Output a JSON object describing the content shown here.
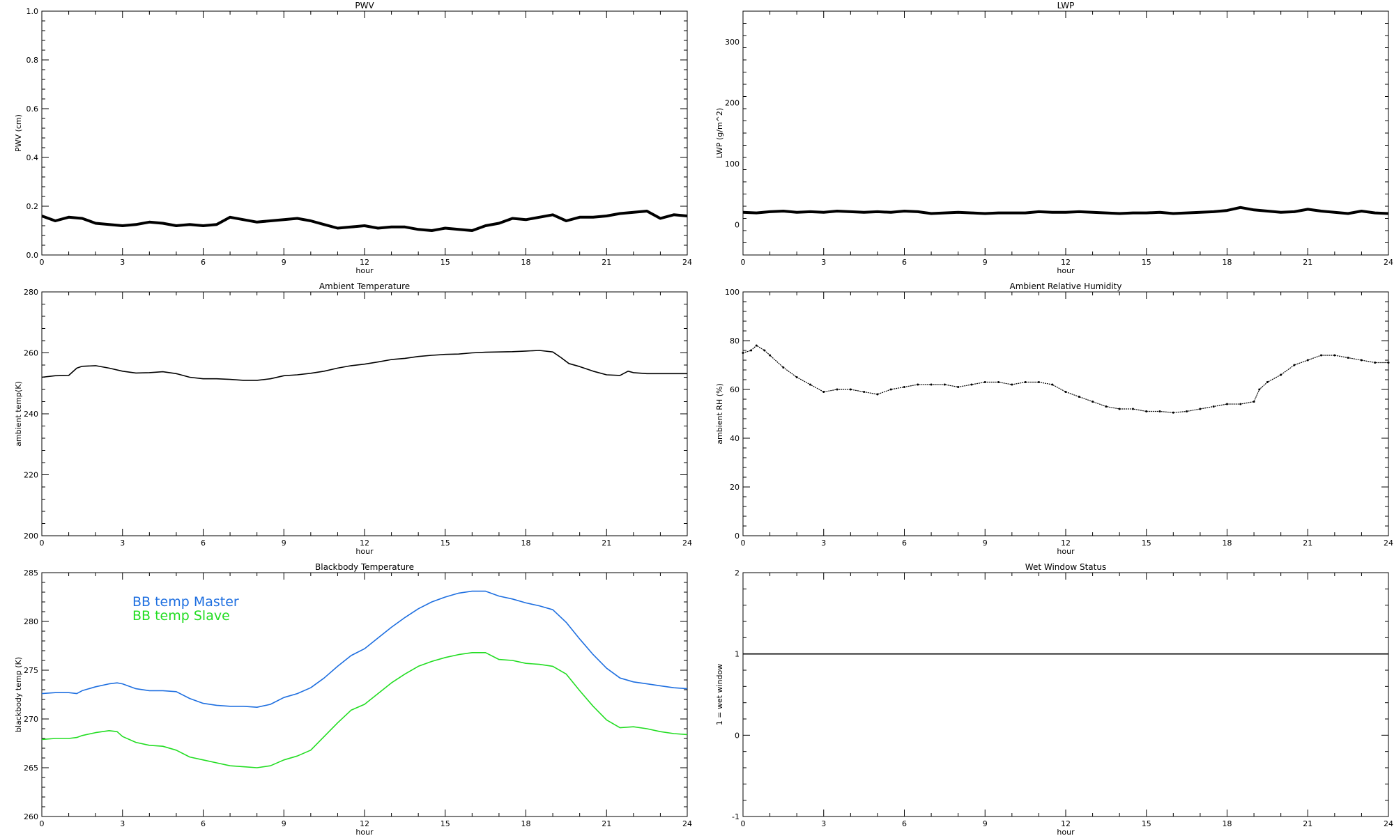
{
  "chart_data": [
    {
      "type": "line",
      "title": "PWV",
      "xlabel": "hour",
      "ylabel": "PWV (cm)",
      "xlim": [
        0,
        24
      ],
      "ylim": [
        0,
        1
      ],
      "xticks": [
        0,
        3,
        6,
        9,
        12,
        15,
        18,
        21,
        24
      ],
      "yticks": [
        "0.0",
        "0.2",
        "0.4",
        "0.6",
        "0.8",
        "1.0"
      ],
      "series": [
        {
          "color": "#000000",
          "x": [
            0,
            0.5,
            1,
            1.5,
            2,
            2.5,
            3,
            3.5,
            4,
            4.5,
            5,
            5.5,
            6,
            6.5,
            7,
            7.5,
            8,
            8.5,
            9,
            9.5,
            10,
            10.5,
            11,
            11.5,
            12,
            12.5,
            13,
            13.5,
            14,
            14.5,
            15,
            15.5,
            16,
            16.5,
            17,
            17.5,
            18,
            18.5,
            19,
            19.5,
            20,
            20.5,
            21,
            21.5,
            22,
            22.5,
            23,
            23.5,
            24
          ],
          "y": [
            0.16,
            0.14,
            0.155,
            0.15,
            0.13,
            0.125,
            0.12,
            0.125,
            0.135,
            0.13,
            0.12,
            0.125,
            0.12,
            0.125,
            0.155,
            0.145,
            0.135,
            0.14,
            0.145,
            0.15,
            0.14,
            0.125,
            0.11,
            0.115,
            0.12,
            0.11,
            0.115,
            0.115,
            0.105,
            0.1,
            0.11,
            0.105,
            0.1,
            0.12,
            0.13,
            0.15,
            0.145,
            0.155,
            0.165,
            0.14,
            0.155,
            0.155,
            0.16,
            0.17,
            0.175,
            0.18,
            0.15,
            0.165,
            0.16
          ]
        }
      ]
    },
    {
      "type": "line",
      "title": "LWP",
      "xlabel": "hour",
      "ylabel": "LWP (g/m^2)",
      "xlim": [
        0,
        24
      ],
      "ylim": [
        -50,
        350
      ],
      "xticks": [
        0,
        3,
        6,
        9,
        12,
        15,
        18,
        21,
        24
      ],
      "yticks": [
        "0",
        "100",
        "200",
        "300"
      ],
      "series": [
        {
          "color": "#000000",
          "x": [
            0,
            0.5,
            1,
            1.5,
            2,
            2.5,
            3,
            3.5,
            4,
            4.5,
            5,
            5.5,
            6,
            6.5,
            7,
            7.5,
            8,
            8.5,
            9,
            9.5,
            10,
            10.5,
            11,
            11.5,
            12,
            12.5,
            13,
            13.5,
            14,
            14.5,
            15,
            15.5,
            16,
            16.5,
            17,
            17.5,
            18,
            18.5,
            19,
            19.5,
            20,
            20.5,
            21,
            21.5,
            22,
            22.5,
            23,
            23.5,
            24
          ],
          "y": [
            20,
            19,
            21,
            22,
            20,
            21,
            20,
            22,
            21,
            20,
            21,
            20,
            22,
            21,
            18,
            19,
            20,
            19,
            18,
            19,
            19,
            19,
            21,
            20,
            20,
            21,
            20,
            19,
            18,
            19,
            19,
            20,
            18,
            19,
            20,
            21,
            23,
            28,
            24,
            22,
            20,
            21,
            25,
            22,
            20,
            18,
            22,
            19,
            18
          ]
        }
      ]
    },
    {
      "type": "line",
      "title": "Ambient Temperature",
      "xlabel": "hour",
      "ylabel": "ambient temp(K)",
      "xlim": [
        0,
        24
      ],
      "ylim": [
        200,
        280
      ],
      "xticks": [
        0,
        3,
        6,
        9,
        12,
        15,
        18,
        21,
        24
      ],
      "yticks": [
        "200",
        "220",
        "240",
        "260",
        "280"
      ],
      "series": [
        {
          "color": "#000000",
          "x": [
            0,
            0.5,
            1,
            1.3,
            1.5,
            2,
            2.5,
            3,
            3.5,
            4,
            4.5,
            5,
            5.5,
            6,
            6.5,
            7,
            7.5,
            8,
            8.5,
            9,
            9.5,
            10,
            10.5,
            11,
            11.5,
            12,
            12.5,
            13,
            13.5,
            14,
            14.5,
            15,
            15.5,
            16,
            16.5,
            17,
            17.5,
            18,
            18.5,
            19,
            19.3,
            19.6,
            20,
            20.5,
            21,
            21.5,
            21.8,
            22,
            22.5,
            23,
            23.5,
            24
          ],
          "y": [
            252,
            252.5,
            252.6,
            255,
            255.6,
            255.8,
            255,
            254,
            253.4,
            253.5,
            253.8,
            253.2,
            252,
            251.5,
            251.5,
            251.3,
            251,
            251,
            251.5,
            252.5,
            252.8,
            253.3,
            254,
            255,
            255.8,
            256.3,
            257,
            257.8,
            258.2,
            258.8,
            259.2,
            259.5,
            259.6,
            260,
            260.2,
            260.3,
            260.4,
            260.6,
            260.8,
            260.3,
            258.5,
            256.5,
            255.5,
            254,
            252.8,
            252.6,
            254,
            253.5,
            253.2,
            253.2,
            253.2,
            253.2
          ]
        }
      ]
    },
    {
      "type": "scatter",
      "title": "Ambient Relative Humidity",
      "xlabel": "hour",
      "ylabel": "ambient RH (%)",
      "xlim": [
        0,
        24
      ],
      "ylim": [
        0,
        100
      ],
      "xticks": [
        0,
        3,
        6,
        9,
        12,
        15,
        18,
        21,
        24
      ],
      "yticks": [
        "0",
        "20",
        "40",
        "60",
        "80",
        "100"
      ],
      "series": [
        {
          "color": "#000000",
          "x": [
            0,
            0.3,
            0.5,
            0.8,
            1,
            1.5,
            2,
            2.5,
            3,
            3.5,
            4,
            4.5,
            5,
            5.5,
            6,
            6.5,
            7,
            7.5,
            8,
            8.5,
            9,
            9.5,
            10,
            10.5,
            11,
            11.5,
            12,
            12.5,
            13,
            13.5,
            14,
            14.5,
            15,
            15.5,
            16,
            16.5,
            17,
            17.5,
            18,
            18.5,
            19,
            19.2,
            19.5,
            20,
            20.5,
            21,
            21.5,
            22,
            22.5,
            23,
            23.5,
            24
          ],
          "y": [
            75,
            76,
            78,
            76,
            74,
            69,
            65,
            62,
            59,
            60,
            60,
            59,
            58,
            60,
            61,
            62,
            62,
            62,
            61,
            62,
            63,
            63,
            62,
            63,
            63,
            62,
            59,
            57,
            55,
            53,
            52,
            52,
            51,
            51,
            50.5,
            51,
            52,
            53,
            54,
            54,
            55,
            60,
            63,
            66,
            70,
            72,
            74,
            74,
            73,
            72,
            71,
            71
          ]
        }
      ]
    },
    {
      "type": "line",
      "title": "Blackbody Temperature",
      "xlabel": "hour",
      "ylabel": "blackbody temp (K)",
      "xlim": [
        0,
        24
      ],
      "ylim": [
        260,
        285
      ],
      "xticks": [
        0,
        3,
        6,
        9,
        12,
        15,
        18,
        21,
        24
      ],
      "yticks": [
        "260",
        "265",
        "270",
        "275",
        "280",
        "285"
      ],
      "legend": "top-left",
      "series": [
        {
          "name": "BB temp Master",
          "color": "#1e6fe0",
          "x": [
            0,
            0.5,
            1,
            1.3,
            1.5,
            2,
            2.5,
            2.8,
            3,
            3.5,
            4,
            4.5,
            5,
            5.5,
            6,
            6.5,
            7,
            7.5,
            8,
            8.5,
            9,
            9.5,
            10,
            10.5,
            11,
            11.5,
            12,
            12.5,
            13,
            13.5,
            14,
            14.5,
            15,
            15.5,
            16,
            16.5,
            17,
            17.5,
            18,
            18.5,
            19,
            19.5,
            20,
            20.5,
            21,
            21.5,
            22,
            22.5,
            23,
            23.5,
            24
          ],
          "y": [
            272.6,
            272.7,
            272.7,
            272.6,
            272.9,
            273.3,
            273.6,
            273.7,
            273.6,
            273.1,
            272.9,
            272.9,
            272.8,
            272.1,
            271.6,
            271.4,
            271.3,
            271.3,
            271.2,
            271.5,
            272.2,
            272.6,
            273.2,
            274.2,
            275.4,
            276.5,
            277.2,
            278.3,
            279.4,
            280.4,
            281.3,
            282.0,
            282.5,
            282.9,
            283.1,
            283.1,
            282.6,
            282.3,
            281.9,
            281.6,
            281.2,
            279.9,
            278.2,
            276.6,
            275.2,
            274.2,
            273.8,
            273.6,
            273.4,
            273.2,
            273.1
          ]
        },
        {
          "name": "BB temp Slave",
          "color": "#22dd22",
          "x": [
            0,
            0.5,
            1,
            1.3,
            1.5,
            2,
            2.5,
            2.8,
            3,
            3.5,
            4,
            4.5,
            5,
            5.5,
            6,
            6.5,
            7,
            7.5,
            8,
            8.5,
            9,
            9.5,
            10,
            10.5,
            11,
            11.5,
            12,
            12.5,
            13,
            13.5,
            14,
            14.5,
            15,
            15.5,
            16,
            16.5,
            17,
            17.5,
            18,
            18.5,
            19,
            19.5,
            20,
            20.5,
            21,
            21.5,
            22,
            22.5,
            23,
            23.5,
            24
          ],
          "y": [
            267.9,
            268.0,
            268.0,
            268.1,
            268.3,
            268.6,
            268.8,
            268.7,
            268.2,
            267.6,
            267.3,
            267.2,
            266.8,
            266.1,
            265.8,
            265.5,
            265.2,
            265.1,
            265.0,
            265.2,
            265.8,
            266.2,
            266.8,
            268.2,
            269.6,
            270.9,
            271.5,
            272.6,
            273.7,
            274.6,
            275.4,
            275.9,
            276.3,
            276.6,
            276.8,
            276.8,
            276.1,
            276.0,
            275.7,
            275.6,
            275.4,
            274.6,
            272.9,
            271.3,
            269.9,
            269.1,
            269.2,
            269.0,
            268.7,
            268.5,
            268.4
          ]
        }
      ]
    },
    {
      "type": "line",
      "title": "Wet Window Status",
      "xlabel": "hour",
      "ylabel": "1 = wet window",
      "xlim": [
        0,
        24
      ],
      "ylim": [
        -1,
        2
      ],
      "xticks": [
        0,
        3,
        6,
        9,
        12,
        15,
        18,
        21,
        24
      ],
      "yticks": [
        "-1",
        "0",
        "1",
        "2"
      ],
      "series": [
        {
          "color": "#000000",
          "x": [
            0,
            24
          ],
          "y": [
            1,
            1
          ]
        }
      ]
    }
  ]
}
